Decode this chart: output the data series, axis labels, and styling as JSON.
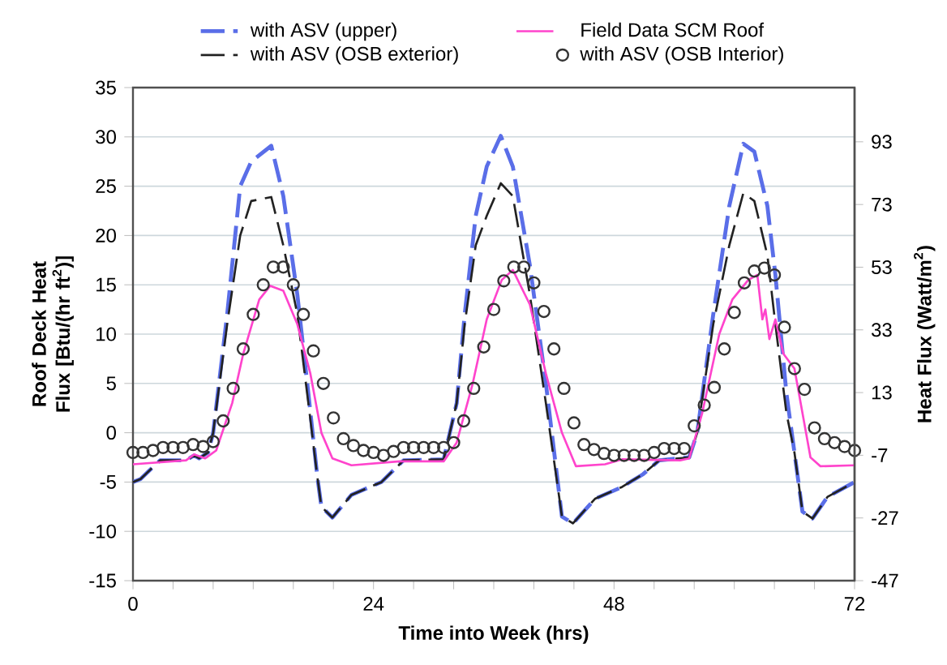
{
  "chart_data": {
    "type": "line",
    "xlabel": "Time into Week (hrs)",
    "ylabel": "Roof Deck Heat Flux [Btu/(hr ft$^{2}$)]",
    "y2label": "Heat Flux (Watt/m$^{2}$)",
    "xlim": [
      0,
      72
    ],
    "xticks": [
      0,
      {
        "value": 4,
        "label": null
      },
      {
        "value": 8,
        "label": null
      },
      {
        "value": 12,
        "label": null
      },
      {
        "value": 16,
        "label": null
      },
      {
        "value": 20,
        "label": null
      },
      24,
      {
        "value": 28,
        "label": null
      },
      {
        "value": 32,
        "label": null
      },
      {
        "value": 36,
        "label": null
      },
      {
        "value": 40,
        "label": null
      },
      {
        "value": 44,
        "label": null
      },
      48,
      {
        "value": 52,
        "label": null
      },
      {
        "value": 56,
        "label": null
      },
      {
        "value": 60,
        "label": null
      },
      {
        "value": 64,
        "label": null
      },
      {
        "value": 68,
        "label": null
      },
      72
    ],
    "ylim": [
      -15,
      35
    ],
    "yticks": [
      -15,
      -10,
      -5,
      0,
      5,
      10,
      15,
      20,
      25,
      30,
      35
    ],
    "y2lim": [
      -47,
      110.3
    ],
    "y2ticks": [
      -47,
      -27,
      -7,
      13,
      33,
      53,
      73,
      93
    ],
    "grid": "y",
    "legend": "top",
    "series": [
      {
        "name": "with ASV (upper)",
        "line_style": "dashed",
        "color": "#5a6ee8",
        "x": [
          0,
          0.75,
          2.7,
          5.3,
          6.1,
          6.6,
          7.5,
          8.0,
          9.4,
          10.7,
          11.8,
          13.8,
          15.0,
          16.4,
          17.5,
          18.4,
          18.8,
          19.9,
          21.8,
          24.8,
          27,
          31,
          32.3,
          33.1,
          34.2,
          35.3,
          36.7,
          37.9,
          39.6,
          41.2,
          42.8,
          43.9,
          46.1,
          48.8,
          50.9,
          52.5,
          55.5,
          56.3,
          57.9,
          59.5,
          60.9,
          62.0,
          63.3,
          64.1,
          65.2,
          66.0,
          66.8,
          67.8,
          69.3,
          72
        ],
        "values": [
          -5,
          -4.7,
          -2.8,
          -2.8,
          -2.3,
          -2.6,
          -2,
          0,
          12,
          25,
          27.5,
          29.1,
          24,
          14,
          4,
          -4.5,
          -7.5,
          -8.6,
          -6.3,
          -5,
          -2.8,
          -2.7,
          3,
          12,
          22,
          27,
          30.1,
          27,
          17,
          5,
          -8.5,
          -9.2,
          -6.7,
          -5.5,
          -4.2,
          -2.8,
          -2.5,
          0,
          12,
          23,
          29.3,
          28.5,
          23,
          16,
          4,
          -2,
          -8,
          -8.7,
          -6.5,
          -5
        ]
      },
      {
        "name": "with ASV (OSB exterior)",
        "line_style": "dashed",
        "color": "#222222",
        "x": [
          0,
          0.75,
          2.7,
          5.3,
          6.1,
          6.6,
          7.5,
          8.0,
          9.4,
          10.7,
          11.8,
          13.8,
          15.0,
          16.4,
          17.5,
          18.4,
          18.8,
          19.9,
          21.8,
          24.8,
          27,
          31,
          32.3,
          33.1,
          34.2,
          35.3,
          36.7,
          37.9,
          39.6,
          41.2,
          42.8,
          43.9,
          46.1,
          48.8,
          50.9,
          52.5,
          55.5,
          56.3,
          57.9,
          59.5,
          60.9,
          62.0,
          63.3,
          64.1,
          65.2,
          66.0,
          66.8,
          67.8,
          69.3,
          72
        ],
        "values": [
          -5,
          -4.7,
          -2.8,
          -2.8,
          -2.3,
          -2.6,
          -2,
          0,
          11,
          20,
          23.5,
          23.9,
          19,
          12,
          3,
          -4.5,
          -7.5,
          -8.6,
          -6.3,
          -5,
          -2.8,
          -2.7,
          3,
          11,
          19,
          22,
          25.3,
          24,
          14,
          3,
          -8.5,
          -9.2,
          -6.7,
          -5.5,
          -4.2,
          -2.8,
          -2.5,
          0,
          11,
          19,
          24.3,
          23.5,
          18,
          11,
          2,
          -2,
          -8,
          -8.7,
          -6.5,
          -5
        ]
      },
      {
        "name": "Field Data SCM Roof",
        "line_style": "solid",
        "color": "#ff44cc",
        "x": [
          0,
          5.3,
          6.1,
          7.2,
          8.3,
          9.9,
          11.0,
          12.6,
          13.7,
          15.0,
          16.4,
          17.7,
          18.8,
          19.9,
          21.8,
          26.6,
          31,
          32.3,
          33.9,
          35.3,
          36.8,
          37.9,
          39.6,
          41.2,
          42.8,
          44.2,
          47.1,
          48.8,
          54.6,
          55.5,
          56.8,
          58.5,
          59.8,
          61.4,
          62.3,
          62.8,
          63.1,
          63.5,
          64.1,
          64.9,
          66.0,
          66.8,
          67.6,
          68.6,
          72
        ],
        "values": [
          -3.2,
          -2.8,
          -2.2,
          -2.6,
          -1.8,
          3,
          8,
          13.5,
          14.9,
          14.4,
          11,
          6,
          0,
          -2.6,
          -3.3,
          -2.9,
          -2.9,
          -1,
          5,
          11.5,
          15.5,
          16.5,
          13,
          6,
          0,
          -3.4,
          -3.2,
          -2.7,
          -2.8,
          -2.6,
          2,
          10,
          13.5,
          15.5,
          16,
          11.5,
          12.5,
          9.5,
          11.5,
          8,
          6.5,
          2,
          -2.5,
          -3.4,
          -3.3
        ]
      },
      {
        "name": "with ASV (OSB Interior)",
        "type": "scatter",
        "marker": "circle",
        "color": "#333333",
        "x": [
          0,
          1,
          2,
          3,
          4,
          5,
          6,
          7,
          8,
          9,
          10,
          11,
          12,
          13,
          14,
          15,
          16,
          17,
          18,
          19,
          20,
          21,
          22,
          23,
          24,
          25,
          26,
          27,
          28,
          29,
          30,
          31,
          32,
          33,
          34,
          35,
          36,
          37,
          38,
          39,
          40,
          41,
          42,
          43,
          44,
          45,
          46,
          47,
          48,
          49,
          50,
          51,
          52,
          53,
          54,
          55,
          56,
          57,
          58,
          59,
          60,
          61,
          62,
          63,
          64,
          65,
          66,
          67,
          68,
          69,
          70,
          71,
          72
        ],
        "values": [
          -2.0,
          -2.0,
          -1.8,
          -1.5,
          -1.5,
          -1.5,
          -1.2,
          -1.4,
          -0.9,
          1.2,
          4.5,
          8.5,
          12,
          15,
          16.8,
          16.8,
          15,
          12,
          8.3,
          5,
          1.5,
          -0.6,
          -1.3,
          -1.8,
          -2.0,
          -2.3,
          -1.9,
          -1.5,
          -1.5,
          -1.5,
          -1.5,
          -1.5,
          -1.0,
          1.2,
          4.5,
          8.7,
          12.5,
          15.4,
          16.8,
          16.8,
          15.2,
          12.3,
          8.5,
          4.5,
          1.0,
          -1.2,
          -1.7,
          -2.1,
          -2.3,
          -2.3,
          -2.3,
          -2.3,
          -2.0,
          -1.6,
          -1.6,
          -1.6,
          0.7,
          2.8,
          4.6,
          8.5,
          12.2,
          15.2,
          16.4,
          16.7,
          16,
          10.7,
          6.5,
          4.4,
          0.5,
          -0.6,
          -1.0,
          -1.4,
          -1.8
        ]
      }
    ]
  }
}
